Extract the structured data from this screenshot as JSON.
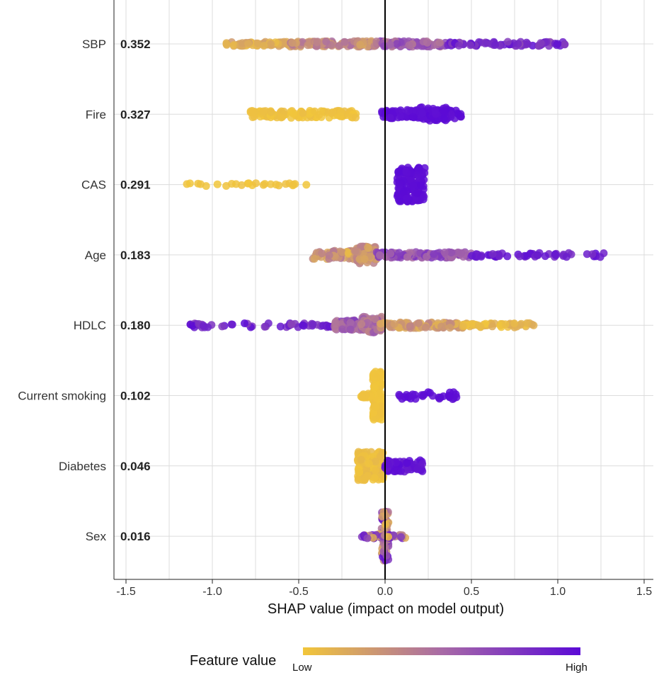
{
  "chart_data": {
    "type": "scatter",
    "subtype": "shap-beeswarm",
    "xlabel": "SHAP value (impact on model output)",
    "xlim": [
      -1.55,
      1.55
    ],
    "xticks": [
      -1.5,
      -1.0,
      -0.5,
      0.0,
      0.5,
      1.0,
      1.5
    ],
    "xtick_labels": [
      "-1.5",
      "-1.0",
      "-0.5",
      "0.0",
      "0.5",
      "1.0",
      "1.5"
    ],
    "grid": true,
    "legend": {
      "title": "Feature value",
      "low_label": "Low",
      "high_label": "High",
      "low_color": "#f2c63a",
      "high_color": "#5b0ad6",
      "placement": "bottom"
    },
    "features": [
      {
        "name": "SBP",
        "importance": "0.352",
        "clusters": [
          {
            "x": [
              -0.92,
              -0.55
            ],
            "n": 70,
            "c": [
              0.05,
              0.25
            ],
            "spread": 3
          },
          {
            "x": [
              -0.55,
              -0.05
            ],
            "n": 110,
            "c": [
              0.15,
              0.5
            ],
            "spread": 4
          },
          {
            "x": [
              -0.05,
              0.35
            ],
            "n": 90,
            "c": [
              0.4,
              0.75
            ],
            "spread": 4
          },
          {
            "x": [
              0.35,
              1.06
            ],
            "n": 70,
            "c": [
              0.65,
              1.0
            ],
            "spread": 3
          }
        ]
      },
      {
        "name": "Fire",
        "importance": "0.327",
        "clusters": [
          {
            "x": [
              -0.78,
              -0.15
            ],
            "n": 110,
            "c": [
              0.0,
              0.05
            ],
            "spread": 5
          },
          {
            "x": [
              -0.02,
              0.44
            ],
            "n": 110,
            "c": [
              0.96,
              1.0
            ],
            "spread": 6
          },
          {
            "x": [
              0.2,
              0.36
            ],
            "n": 60,
            "c": [
              0.96,
              1.0
            ],
            "spread": 10
          }
        ]
      },
      {
        "name": "CAS",
        "importance": "0.291",
        "clusters": [
          {
            "x": [
              -1.16,
              -0.44
            ],
            "n": 25,
            "c": [
              0.0,
              0.03
            ],
            "spread": 2
          },
          {
            "x": [
              0.07,
              0.23
            ],
            "n": 150,
            "c": [
              0.97,
              1.0
            ],
            "spread": 24
          }
        ]
      },
      {
        "name": "Age",
        "importance": "0.183",
        "clusters": [
          {
            "x": [
              -0.43,
              -0.05
            ],
            "n": 100,
            "c": [
              0.05,
              0.45
            ],
            "spread": 6
          },
          {
            "x": [
              -0.18,
              -0.05
            ],
            "n": 60,
            "c": [
              0.15,
              0.4
            ],
            "spread": 12
          },
          {
            "x": [
              -0.05,
              0.5
            ],
            "n": 100,
            "c": [
              0.45,
              0.8
            ],
            "spread": 4
          },
          {
            "x": [
              0.5,
              1.31
            ],
            "n": 50,
            "c": [
              0.8,
              1.0
            ],
            "spread": 3
          }
        ]
      },
      {
        "name": "HDLC",
        "importance": "0.180",
        "clusters": [
          {
            "x": [
              -1.2,
              -0.3
            ],
            "n": 50,
            "c": [
              0.7,
              1.0
            ],
            "spread": 3
          },
          {
            "x": [
              -0.3,
              -0.03
            ],
            "n": 100,
            "c": [
              0.4,
              0.75
            ],
            "spread": 7
          },
          {
            "x": [
              -0.14,
              -0.02
            ],
            "n": 50,
            "c": [
              0.35,
              0.6
            ],
            "spread": 12
          },
          {
            "x": [
              -0.03,
              0.45
            ],
            "n": 90,
            "c": [
              0.1,
              0.4
            ],
            "spread": 4
          },
          {
            "x": [
              0.45,
              0.87
            ],
            "n": 50,
            "c": [
              0.0,
              0.15
            ],
            "spread": 3
          }
        ]
      },
      {
        "name": "Current smoking",
        "importance": "0.102",
        "clusters": [
          {
            "x": [
              -0.07,
              -0.02
            ],
            "n": 160,
            "c": [
              0.0,
              0.03
            ],
            "spread": 34
          },
          {
            "x": [
              -0.14,
              -0.07
            ],
            "n": 20,
            "c": [
              0.0,
              0.03
            ],
            "spread": 3
          },
          {
            "x": [
              0.08,
              0.43
            ],
            "n": 30,
            "c": [
              0.97,
              1.0
            ],
            "spread": 5
          }
        ]
      },
      {
        "name": "Diabetes",
        "importance": "0.046",
        "clusters": [
          {
            "x": [
              -0.16,
              -0.01
            ],
            "n": 130,
            "c": [
              0.0,
              0.08
            ],
            "spread": 20
          },
          {
            "x": [
              0.0,
              0.22
            ],
            "n": 60,
            "c": [
              0.92,
              1.0
            ],
            "spread": 8
          }
        ]
      },
      {
        "name": "Sex",
        "importance": "0.016",
        "clusters": [
          {
            "x": [
              -0.02,
              0.02
            ],
            "n": 80,
            "c": [
              0.0,
              1.0
            ],
            "spread": 35
          },
          {
            "x": [
              -0.14,
              0.12
            ],
            "n": 40,
            "c": [
              0.0,
              1.0
            ],
            "spread": 3
          }
        ]
      }
    ]
  }
}
